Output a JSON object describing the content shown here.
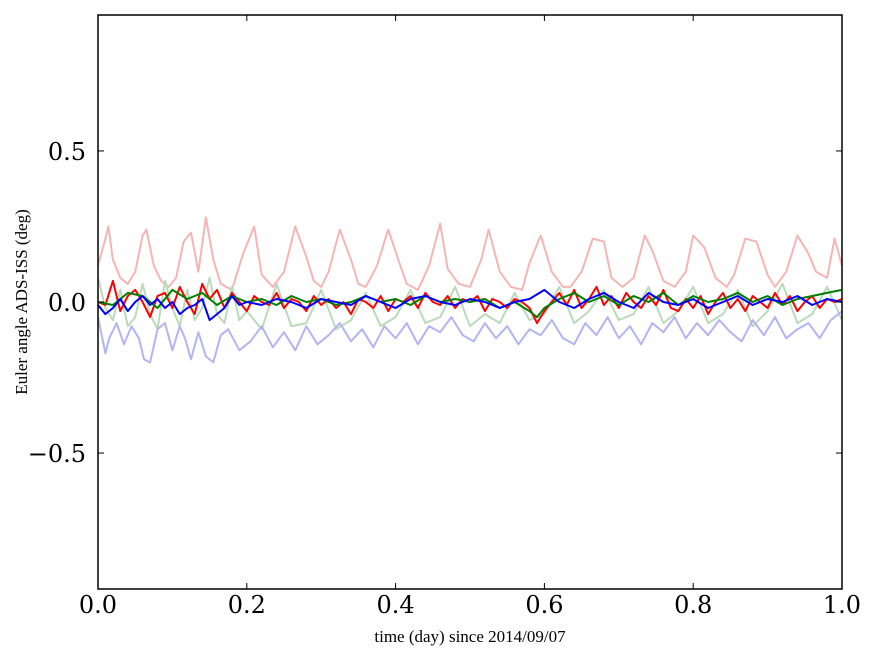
{
  "chart_data": {
    "type": "line",
    "title": "",
    "xlabel": "time (day) since 2014/09/07",
    "ylabel": "Euler angle ADS-ISS (deg)",
    "xlim": [
      0.0,
      1.0
    ],
    "ylim": [
      -0.95,
      0.95
    ],
    "grid": false,
    "x_ticks": [
      {
        "value": 0.0,
        "label": "0.0"
      },
      {
        "value": 0.2,
        "label": "0.2"
      },
      {
        "value": 0.4,
        "label": "0.4"
      },
      {
        "value": 0.6,
        "label": "0.6"
      },
      {
        "value": 0.8,
        "label": "0.8"
      },
      {
        "value": 1.0,
        "label": "1.0"
      }
    ],
    "y_ticks": [
      {
        "value": 0.5,
        "label": "0.5"
      },
      {
        "value": 0.0,
        "label": "0.0"
      },
      {
        "value": -0.5,
        "label": "−0.5"
      }
    ],
    "series": [
      {
        "color": "#f5b5b5",
        "x": [
          0.0,
          0.01,
          0.014,
          0.02,
          0.03,
          0.04,
          0.05,
          0.06,
          0.065,
          0.075,
          0.085,
          0.095,
          0.105,
          0.115,
          0.125,
          0.135,
          0.145,
          0.155,
          0.165,
          0.18,
          0.195,
          0.21,
          0.22,
          0.235,
          0.25,
          0.265,
          0.28,
          0.29,
          0.3,
          0.31,
          0.325,
          0.34,
          0.35,
          0.36,
          0.375,
          0.39,
          0.405,
          0.415,
          0.43,
          0.445,
          0.46,
          0.47,
          0.485,
          0.5,
          0.515,
          0.525,
          0.54,
          0.555,
          0.57,
          0.58,
          0.595,
          0.61,
          0.625,
          0.635,
          0.65,
          0.665,
          0.68,
          0.69,
          0.705,
          0.72,
          0.735,
          0.745,
          0.76,
          0.775,
          0.79,
          0.8,
          0.815,
          0.83,
          0.845,
          0.855,
          0.87,
          0.885,
          0.9,
          0.91,
          0.925,
          0.94,
          0.955,
          0.965,
          0.98,
          0.99,
          1.0
        ],
        "y": [
          0.12,
          0.21,
          0.25,
          0.14,
          0.08,
          0.06,
          0.1,
          0.22,
          0.24,
          0.12,
          0.07,
          0.05,
          0.08,
          0.2,
          0.23,
          0.1,
          0.28,
          0.14,
          0.06,
          0.04,
          0.16,
          0.25,
          0.09,
          0.05,
          0.1,
          0.25,
          0.15,
          0.07,
          0.05,
          0.1,
          0.24,
          0.14,
          0.06,
          0.05,
          0.12,
          0.24,
          0.13,
          0.06,
          0.04,
          0.12,
          0.26,
          0.11,
          0.06,
          0.05,
          0.14,
          0.24,
          0.1,
          0.05,
          0.04,
          0.13,
          0.22,
          0.1,
          0.05,
          0.05,
          0.1,
          0.21,
          0.2,
          0.08,
          0.05,
          0.08,
          0.22,
          0.17,
          0.07,
          0.05,
          0.1,
          0.22,
          0.18,
          0.08,
          0.05,
          0.09,
          0.21,
          0.2,
          0.09,
          0.05,
          0.1,
          0.22,
          0.16,
          0.1,
          0.08,
          0.21,
          0.12
        ]
      },
      {
        "color": "#b9dbb9",
        "x": [
          0.0,
          0.01,
          0.02,
          0.03,
          0.04,
          0.05,
          0.06,
          0.07,
          0.08,
          0.09,
          0.1,
          0.11,
          0.12,
          0.13,
          0.14,
          0.15,
          0.16,
          0.17,
          0.18,
          0.19,
          0.2,
          0.22,
          0.24,
          0.26,
          0.28,
          0.3,
          0.32,
          0.34,
          0.36,
          0.38,
          0.4,
          0.42,
          0.44,
          0.46,
          0.48,
          0.5,
          0.52,
          0.54,
          0.56,
          0.58,
          0.6,
          0.62,
          0.64,
          0.66,
          0.68,
          0.7,
          0.72,
          0.74,
          0.76,
          0.78,
          0.8,
          0.82,
          0.84,
          0.86,
          0.88,
          0.9,
          0.92,
          0.94,
          0.96,
          0.98,
          1.0
        ],
        "y": [
          0.08,
          -0.02,
          -0.06,
          0.04,
          -0.08,
          -0.05,
          0.06,
          -0.04,
          -0.09,
          0.07,
          -0.02,
          -0.08,
          0.04,
          -0.06,
          -0.02,
          0.08,
          -0.04,
          -0.07,
          0.05,
          -0.06,
          -0.03,
          -0.09,
          0.06,
          -0.08,
          -0.07,
          0.04,
          -0.09,
          -0.06,
          0.03,
          -0.08,
          -0.05,
          0.04,
          -0.07,
          -0.05,
          0.05,
          -0.08,
          -0.04,
          -0.07,
          0.03,
          -0.06,
          -0.04,
          0.05,
          -0.07,
          -0.03,
          0.04,
          -0.06,
          -0.04,
          0.05,
          -0.07,
          -0.03,
          0.05,
          -0.07,
          -0.04,
          0.04,
          -0.08,
          -0.03,
          0.06,
          -0.07,
          -0.04,
          0.05,
          -0.06
        ]
      },
      {
        "color": "#b4b4f3",
        "x": [
          0.0,
          0.01,
          0.015,
          0.025,
          0.035,
          0.045,
          0.055,
          0.062,
          0.07,
          0.08,
          0.09,
          0.1,
          0.11,
          0.117,
          0.125,
          0.135,
          0.145,
          0.155,
          0.165,
          0.175,
          0.19,
          0.205,
          0.22,
          0.235,
          0.25,
          0.265,
          0.28,
          0.295,
          0.31,
          0.325,
          0.34,
          0.355,
          0.37,
          0.385,
          0.4,
          0.415,
          0.43,
          0.445,
          0.46,
          0.475,
          0.49,
          0.505,
          0.52,
          0.535,
          0.55,
          0.565,
          0.58,
          0.595,
          0.61,
          0.625,
          0.64,
          0.655,
          0.67,
          0.685,
          0.7,
          0.715,
          0.73,
          0.745,
          0.76,
          0.775,
          0.79,
          0.805,
          0.82,
          0.835,
          0.85,
          0.865,
          0.88,
          0.895,
          0.91,
          0.925,
          0.94,
          0.955,
          0.97,
          0.985,
          1.0
        ],
        "y": [
          -0.05,
          -0.17,
          -0.12,
          -0.07,
          -0.14,
          -0.08,
          -0.12,
          -0.19,
          -0.2,
          -0.09,
          -0.07,
          -0.16,
          -0.08,
          -0.12,
          -0.19,
          -0.1,
          -0.18,
          -0.2,
          -0.11,
          -0.09,
          -0.16,
          -0.13,
          -0.08,
          -0.15,
          -0.1,
          -0.16,
          -0.08,
          -0.14,
          -0.11,
          -0.07,
          -0.13,
          -0.09,
          -0.15,
          -0.08,
          -0.12,
          -0.07,
          -0.14,
          -0.08,
          -0.1,
          -0.05,
          -0.11,
          -0.13,
          -0.07,
          -0.12,
          -0.08,
          -0.14,
          -0.09,
          -0.11,
          -0.06,
          -0.12,
          -0.14,
          -0.07,
          -0.11,
          -0.05,
          -0.12,
          -0.08,
          -0.14,
          -0.07,
          -0.1,
          -0.05,
          -0.12,
          -0.07,
          -0.11,
          -0.06,
          -0.1,
          -0.13,
          -0.06,
          -0.11,
          -0.05,
          -0.12,
          -0.09,
          -0.07,
          -0.12,
          -0.06,
          -0.03
        ]
      },
      {
        "color": "#ff0000",
        "x": [
          0.0,
          0.01,
          0.02,
          0.03,
          0.04,
          0.05,
          0.06,
          0.07,
          0.08,
          0.09,
          0.1,
          0.11,
          0.12,
          0.13,
          0.14,
          0.15,
          0.16,
          0.17,
          0.18,
          0.19,
          0.2,
          0.21,
          0.22,
          0.23,
          0.24,
          0.25,
          0.26,
          0.27,
          0.28,
          0.29,
          0.3,
          0.31,
          0.32,
          0.33,
          0.34,
          0.35,
          0.36,
          0.37,
          0.38,
          0.39,
          0.4,
          0.41,
          0.42,
          0.43,
          0.44,
          0.45,
          0.46,
          0.47,
          0.48,
          0.49,
          0.5,
          0.51,
          0.52,
          0.53,
          0.54,
          0.55,
          0.56,
          0.57,
          0.58,
          0.59,
          0.6,
          0.61,
          0.62,
          0.63,
          0.64,
          0.65,
          0.66,
          0.67,
          0.68,
          0.69,
          0.7,
          0.71,
          0.72,
          0.73,
          0.74,
          0.75,
          0.76,
          0.77,
          0.78,
          0.79,
          0.8,
          0.81,
          0.82,
          0.83,
          0.84,
          0.85,
          0.86,
          0.87,
          0.88,
          0.89,
          0.9,
          0.91,
          0.92,
          0.93,
          0.94,
          0.95,
          0.96,
          0.97,
          0.98,
          0.99,
          1.0
        ],
        "y": [
          0.0,
          -0.01,
          0.07,
          -0.03,
          0.02,
          0.04,
          0.0,
          -0.05,
          0.02,
          0.03,
          -0.02,
          0.05,
          0.0,
          -0.04,
          0.06,
          0.01,
          0.04,
          -0.02,
          0.03,
          0.0,
          -0.03,
          0.02,
          0.0,
          -0.01,
          0.03,
          -0.02,
          0.01,
          0.0,
          -0.03,
          0.02,
          -0.01,
          0.01,
          -0.02,
          0.0,
          -0.04,
          0.01,
          0.0,
          -0.02,
          0.02,
          -0.03,
          0.01,
          0.0,
          0.02,
          -0.02,
          0.03,
          0.0,
          -0.01,
          0.02,
          -0.02,
          0.01,
          0.0,
          0.02,
          -0.03,
          0.01,
          0.0,
          -0.02,
          0.01,
          0.0,
          -0.02,
          -0.07,
          -0.03,
          0.0,
          0.03,
          -0.01,
          0.04,
          -0.02,
          0.01,
          0.05,
          -0.01,
          0.02,
          -0.02,
          0.03,
          0.0,
          -0.02,
          0.02,
          -0.01,
          0.04,
          -0.02,
          -0.03,
          0.01,
          -0.02,
          0.02,
          -0.04,
          0.0,
          0.03,
          -0.02,
          0.01,
          -0.03,
          0.02,
          0.0,
          -0.02,
          0.03,
          -0.01,
          0.02,
          -0.03,
          0.0,
          0.02,
          -0.02,
          0.01,
          0.0,
          0.01
        ]
      },
      {
        "color": "#008000",
        "x": [
          0.0,
          0.02,
          0.04,
          0.06,
          0.08,
          0.1,
          0.12,
          0.14,
          0.16,
          0.18,
          0.2,
          0.22,
          0.24,
          0.26,
          0.28,
          0.3,
          0.32,
          0.34,
          0.36,
          0.38,
          0.4,
          0.42,
          0.44,
          0.46,
          0.48,
          0.5,
          0.52,
          0.54,
          0.56,
          0.58,
          0.59,
          0.6,
          0.62,
          0.64,
          0.66,
          0.68,
          0.7,
          0.72,
          0.74,
          0.76,
          0.78,
          0.8,
          0.82,
          0.84,
          0.86,
          0.88,
          0.9,
          0.92,
          0.94,
          0.96,
          0.98,
          1.0
        ],
        "y": [
          0.0,
          -0.01,
          0.03,
          0.02,
          -0.02,
          0.04,
          0.01,
          0.03,
          -0.01,
          0.02,
          0.0,
          0.01,
          -0.01,
          0.02,
          0.0,
          0.01,
          -0.01,
          0.0,
          0.02,
          0.0,
          0.01,
          -0.01,
          0.02,
          0.0,
          0.01,
          0.0,
          0.01,
          -0.02,
          0.0,
          -0.03,
          -0.05,
          -0.02,
          0.01,
          0.03,
          0.0,
          0.02,
          -0.01,
          0.02,
          0.0,
          0.03,
          -0.01,
          0.02,
          0.0,
          0.01,
          0.03,
          0.0,
          0.02,
          -0.01,
          0.01,
          0.02,
          0.03,
          0.04
        ]
      },
      {
        "color": "#0000ff",
        "x": [
          0.0,
          0.01,
          0.02,
          0.03,
          0.04,
          0.05,
          0.06,
          0.07,
          0.08,
          0.09,
          0.1,
          0.11,
          0.12,
          0.13,
          0.14,
          0.15,
          0.16,
          0.17,
          0.18,
          0.19,
          0.2,
          0.22,
          0.24,
          0.26,
          0.28,
          0.3,
          0.32,
          0.34,
          0.36,
          0.38,
          0.4,
          0.42,
          0.44,
          0.46,
          0.48,
          0.5,
          0.52,
          0.54,
          0.56,
          0.58,
          0.6,
          0.61,
          0.62,
          0.64,
          0.66,
          0.68,
          0.7,
          0.72,
          0.74,
          0.76,
          0.78,
          0.8,
          0.82,
          0.84,
          0.86,
          0.88,
          0.9,
          0.92,
          0.94,
          0.96,
          0.98,
          1.0
        ],
        "y": [
          -0.01,
          -0.04,
          -0.02,
          0.01,
          -0.03,
          0.0,
          0.02,
          -0.01,
          0.01,
          -0.02,
          0.0,
          -0.04,
          -0.02,
          -0.01,
          0.01,
          -0.06,
          -0.04,
          -0.02,
          0.02,
          -0.01,
          0.0,
          -0.01,
          0.01,
          0.0,
          -0.02,
          0.01,
          0.0,
          -0.01,
          0.02,
          0.0,
          -0.02,
          0.01,
          0.02,
          0.0,
          -0.01,
          0.01,
          0.0,
          -0.02,
          0.0,
          0.01,
          0.04,
          0.02,
          0.0,
          -0.02,
          0.01,
          0.03,
          0.0,
          -0.02,
          0.03,
          0.0,
          -0.01,
          0.01,
          -0.02,
          0.0,
          0.02,
          -0.01,
          0.01,
          0.0,
          0.02,
          -0.01,
          0.01,
          0.0
        ]
      }
    ]
  }
}
